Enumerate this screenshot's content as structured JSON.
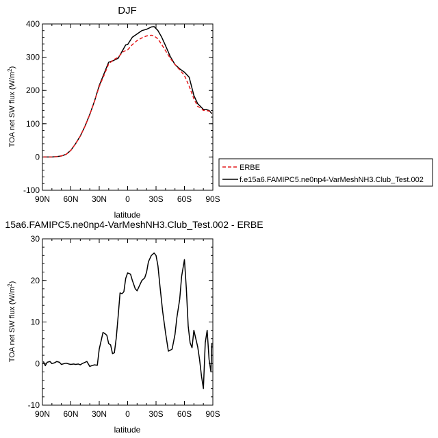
{
  "chart_data": [
    {
      "type": "line",
      "title": "DJF",
      "ylabel_main": "TOA net SW flux (W/m",
      "ylabel_sup": "2",
      "ylabel_tail": ")",
      "xlabel": "latitude",
      "xlim": [
        90,
        -90
      ],
      "ylim": [
        -100,
        400
      ],
      "x_ticks": [
        90,
        60,
        30,
        0,
        -30,
        -60,
        -90
      ],
      "x_tick_labels": [
        "90N",
        "60N",
        "30N",
        "0",
        "30S",
        "60S",
        "90S"
      ],
      "y_ticks": [
        -100,
        0,
        100,
        200,
        300,
        400
      ],
      "y_tick_labels": [
        "-100",
        "0",
        "100",
        "200",
        "300",
        "400"
      ],
      "legend_position": "outside-right",
      "series": [
        {
          "name": "ERBE",
          "color": "#e41a1c",
          "dash": "dashed",
          "x": [
            89,
            85,
            80,
            75,
            70,
            65,
            60,
            55,
            50,
            45,
            40,
            35,
            30,
            25,
            20,
            15,
            10,
            5,
            2,
            0,
            -5,
            -10,
            -15,
            -20,
            -25,
            -28,
            -32,
            -36,
            -40,
            -45,
            -50,
            -55,
            -60,
            -65,
            -70,
            -74,
            -77,
            -80,
            -83,
            -86,
            -89
          ],
          "y": [
            0,
            0,
            0,
            1,
            3,
            8,
            20,
            40,
            63,
            93,
            128,
            168,
            212,
            245,
            280,
            292,
            300,
            316,
            320,
            322,
            338,
            350,
            358,
            364,
            366,
            364,
            355,
            338,
            320,
            297,
            278,
            262,
            245,
            213,
            175,
            152,
            148,
            140,
            140,
            138,
            133
          ]
        },
        {
          "name": "f.e15a6.FAMIPC5.ne0np4-VarMeshNH3.Club_Test.002",
          "color": "#000000",
          "dash": "solid",
          "x": [
            89,
            85,
            80,
            75,
            70,
            65,
            60,
            55,
            50,
            45,
            40,
            35,
            30,
            25,
            20,
            15,
            10,
            5,
            2,
            0,
            -5,
            -10,
            -15,
            -20,
            -25,
            -28,
            -32,
            -36,
            -40,
            -45,
            -50,
            -55,
            -60,
            -65,
            -70,
            -74,
            -77,
            -80,
            -83,
            -86,
            -89
          ],
          "y": [
            0,
            0,
            0,
            1,
            3,
            8,
            20,
            40,
            63,
            93,
            128,
            168,
            215,
            250,
            285,
            290,
            297,
            322,
            337,
            338,
            360,
            370,
            380,
            384,
            391,
            392,
            380,
            360,
            335,
            302,
            278,
            265,
            255,
            240,
            185,
            160,
            152,
            143,
            143,
            140,
            130
          ]
        }
      ]
    },
    {
      "type": "line",
      "title": "15a6.FAMIPC5.ne0np4-VarMeshNH3.Club_Test.002 - ERBE",
      "ylabel_main": "TOA net SW flux (W/m",
      "ylabel_sup": "2",
      "ylabel_tail": ")",
      "xlabel": "latitude",
      "xlim": [
        90,
        -90
      ],
      "ylim": [
        -10,
        30
      ],
      "x_ticks": [
        90,
        60,
        30,
        0,
        -30,
        -60,
        -90
      ],
      "x_tick_labels": [
        "90N",
        "60N",
        "30N",
        "0",
        "30S",
        "60S",
        "90S"
      ],
      "y_ticks": [
        -10,
        0,
        10,
        20,
        30
      ],
      "y_tick_labels": [
        "-10",
        "0",
        "10",
        "20",
        "30"
      ],
      "series": [
        {
          "color": "#000000",
          "dash": "solid",
          "x": [
            89,
            87,
            85,
            82,
            80,
            77,
            75,
            72,
            70,
            67,
            65,
            62,
            60,
            57,
            55,
            52,
            50,
            48,
            46,
            43,
            40,
            38,
            35,
            32,
            30,
            28,
            26,
            24,
            22,
            20,
            18,
            16,
            14,
            12,
            10,
            8,
            6,
            4,
            2,
            0,
            -3,
            -5,
            -8,
            -10,
            -12,
            -15,
            -18,
            -20,
            -22,
            -25,
            -28,
            -30,
            -32,
            -34,
            -37,
            -40,
            -43,
            -45,
            -47,
            -50,
            -52,
            -55,
            -57,
            -60,
            -62,
            -64,
            -66,
            -68,
            -70,
            -72,
            -74,
            -76,
            -78,
            -80,
            -82,
            -84,
            -86,
            -88,
            -89
          ],
          "y": [
            0.5,
            -0.5,
            0.3,
            0.5,
            0,
            0.2,
            0.5,
            0.3,
            -0.2,
            0,
            0.1,
            -0.1,
            -0.2,
            -0.1,
            -0.2,
            -0.1,
            -0.3,
            0,
            0.2,
            0.5,
            -0.7,
            -0.5,
            -0.3,
            -0.4,
            3.5,
            5.5,
            7.5,
            7.2,
            6.8,
            4.8,
            4.5,
            2.4,
            2.6,
            6.2,
            11.5,
            17,
            16.8,
            17.3,
            20.5,
            21.8,
            21.5,
            20,
            18,
            17.5,
            18.5,
            20,
            20.6,
            22,
            24.5,
            26,
            26.6,
            26,
            23.5,
            19,
            12.5,
            7.5,
            3,
            3.2,
            3.5,
            7,
            11,
            15.5,
            21,
            25,
            18,
            9,
            5,
            3.8,
            8,
            6,
            4,
            1,
            -3,
            -6,
            5,
            8,
            1,
            -2,
            5
          ]
        }
      ]
    }
  ],
  "legend": {
    "erbe_label": "ERBE",
    "model_label": "f.e15a6.FAMIPC5.ne0np4-VarMeshNH3.Club_Test.002"
  }
}
